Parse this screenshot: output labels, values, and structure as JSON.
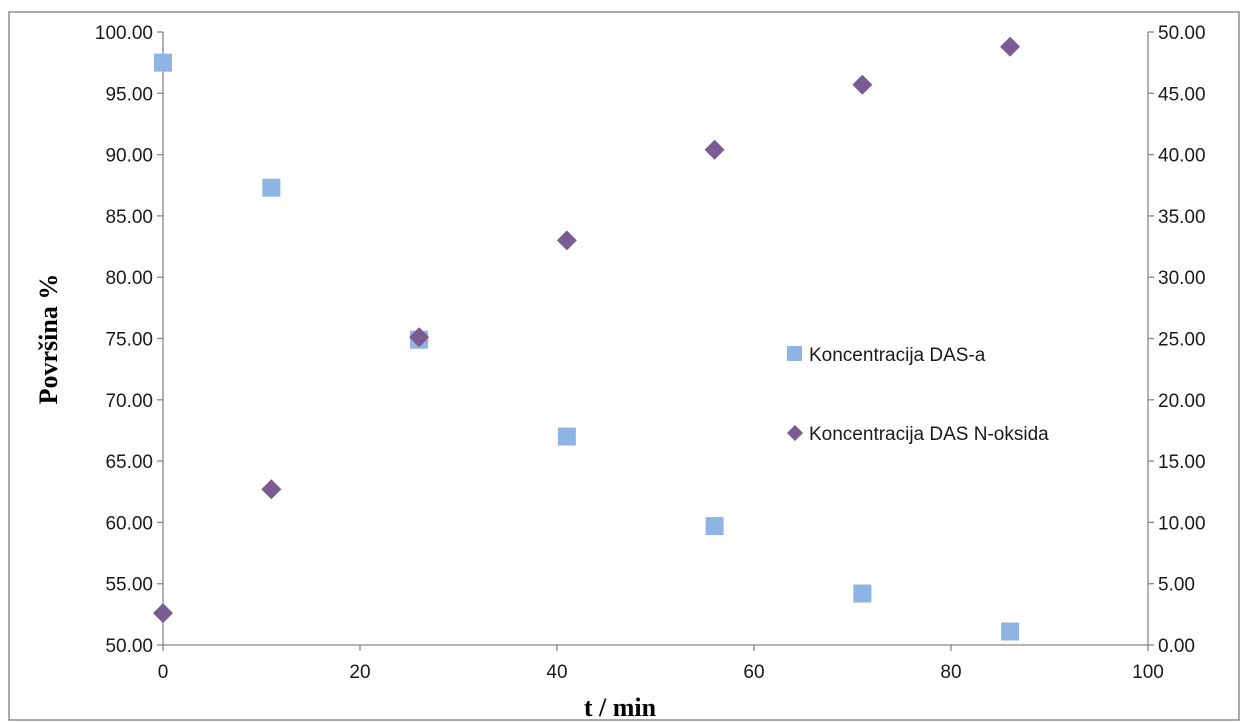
{
  "chart_data": {
    "type": "scatter",
    "xlabel": "t / min",
    "ylabel": "Površina %",
    "xlim": [
      0,
      100
    ],
    "xticks": [
      "0",
      "20",
      "40",
      "60",
      "80",
      "100"
    ],
    "ylim_left": [
      50,
      100
    ],
    "yticks_left": [
      "50.00",
      "55.00",
      "60.00",
      "65.00",
      "70.00",
      "75.00",
      "80.00",
      "85.00",
      "90.00",
      "95.00",
      "100.00"
    ],
    "ylim_right": [
      0,
      50
    ],
    "yticks_right": [
      "0.00",
      "5.00",
      "10.00",
      "15.00",
      "20.00",
      "25.00",
      "30.00",
      "35.00",
      "40.00",
      "45.00",
      "50.00"
    ],
    "legend_position": "center-right",
    "grid": false,
    "series": [
      {
        "name": "Koncentracija DAS-a",
        "axis": "left",
        "marker": "square",
        "color": "#8DB4E2",
        "x": [
          0,
          11,
          26,
          41,
          56,
          71,
          86
        ],
        "y": [
          97.5,
          87.3,
          74.9,
          67.0,
          59.7,
          54.2,
          51.1
        ]
      },
      {
        "name": "Koncentracija DAS N-oksida",
        "axis": "right",
        "marker": "diamond",
        "color": "#7B5C92",
        "x": [
          0,
          11,
          26,
          41,
          56,
          71,
          86
        ],
        "y": [
          2.6,
          12.7,
          25.1,
          33.0,
          40.4,
          45.7,
          48.8
        ]
      }
    ]
  }
}
